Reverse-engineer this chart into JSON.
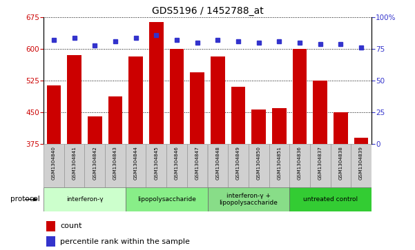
{
  "title": "GDS5196 / 1452788_at",
  "samples": [
    "GSM1304840",
    "GSM1304841",
    "GSM1304842",
    "GSM1304843",
    "GSM1304844",
    "GSM1304845",
    "GSM1304846",
    "GSM1304847",
    "GSM1304848",
    "GSM1304849",
    "GSM1304850",
    "GSM1304851",
    "GSM1304836",
    "GSM1304837",
    "GSM1304838",
    "GSM1304839"
  ],
  "bar_values": [
    513,
    585,
    440,
    487,
    583,
    665,
    600,
    545,
    583,
    510,
    457,
    460,
    600,
    525,
    450,
    390
  ],
  "dot_values": [
    82,
    84,
    78,
    81,
    84,
    86,
    82,
    80,
    82,
    81,
    80,
    81,
    80,
    79,
    79,
    76
  ],
  "ylim_left": [
    375,
    675
  ],
  "ylim_right": [
    0,
    100
  ],
  "yticks_left": [
    375,
    450,
    525,
    600,
    675
  ],
  "yticks_right": [
    0,
    25,
    50,
    75,
    100
  ],
  "ytick_right_labels": [
    "0",
    "25",
    "50",
    "75",
    "100%"
  ],
  "bar_color": "#cc0000",
  "dot_color": "#3333cc",
  "groups": [
    {
      "label": "interferon-γ",
      "start": 0,
      "end": 4,
      "color": "#ccffcc"
    },
    {
      "label": "lipopolysaccharide",
      "start": 4,
      "end": 8,
      "color": "#88ee88"
    },
    {
      "label": "interferon-γ +\nlipopolysaccharide",
      "start": 8,
      "end": 12,
      "color": "#88dd88"
    },
    {
      "label": "untreated control",
      "start": 12,
      "end": 16,
      "color": "#33cc33"
    }
  ],
  "legend_count_label": "count",
  "legend_percentile_label": "percentile rank within the sample",
  "protocol_label": "protocol",
  "xticklabel_bg": "#d0d0d0"
}
